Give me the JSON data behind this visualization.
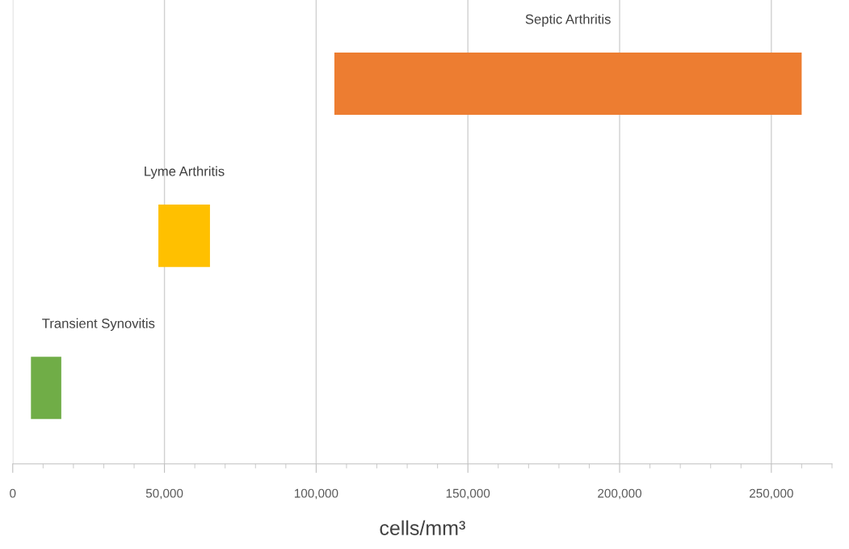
{
  "chart_data": {
    "type": "bar",
    "orientation": "horizontal",
    "categories": [
      "Septic Arthritis",
      "Lyme Arthritis",
      "Transient Synovitis"
    ],
    "base": [
      106000,
      48000,
      6000
    ],
    "values": [
      154000,
      17000,
      10000
    ],
    "colors": [
      "#ed7d31",
      "#ffc000",
      "#70ad47"
    ],
    "xlabel": "cells/mm³",
    "xlim": [
      0,
      270000
    ],
    "xticks": [
      {
        "value": 0,
        "label": "0"
      },
      {
        "value": 50000,
        "label": "50,000"
      },
      {
        "value": 100000,
        "label": "100,000"
      },
      {
        "value": 150000,
        "label": "150,000"
      },
      {
        "value": 200000,
        "label": "200,000"
      },
      {
        "value": 250000,
        "label": "250,000"
      }
    ],
    "grid": "x",
    "tick_labels": "x"
  }
}
